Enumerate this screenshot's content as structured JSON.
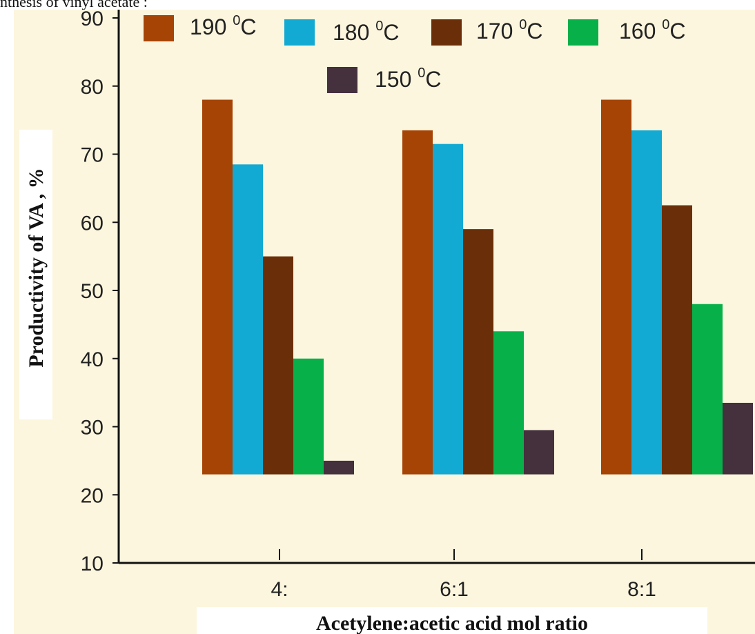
{
  "caption": "nthesis of vinyl acetate :",
  "colors": {
    "background": "#fcf6de",
    "190": "#a64406",
    "180": "#12aad3",
    "170": "#6a2f08",
    "160": "#08b04a",
    "150": "#45303e"
  },
  "chart_data": {
    "type": "bar",
    "title": "",
    "xlabel": "Acetylene:acetic acid mol ratio",
    "ylabel": "Productivity of VA , %",
    "ylim": [
      10,
      90
    ],
    "yticks": [
      10,
      20,
      30,
      40,
      50,
      60,
      70,
      80,
      90
    ],
    "categories": [
      "4:",
      "6:1",
      "8:1"
    ],
    "baseline": 23,
    "legend_position": "top",
    "series": [
      {
        "name": "190",
        "unit": "0C",
        "values": [
          78,
          73.5,
          78
        ]
      },
      {
        "name": "180",
        "unit": "0C",
        "values": [
          68.5,
          71.5,
          73.5
        ]
      },
      {
        "name": "170",
        "unit": "0C",
        "values": [
          55,
          59,
          62.5
        ]
      },
      {
        "name": "160",
        "unit": "0C",
        "values": [
          40,
          44,
          48
        ]
      },
      {
        "name": "150",
        "unit": "0C",
        "values": [
          25,
          29.5,
          33.5
        ]
      }
    ]
  }
}
